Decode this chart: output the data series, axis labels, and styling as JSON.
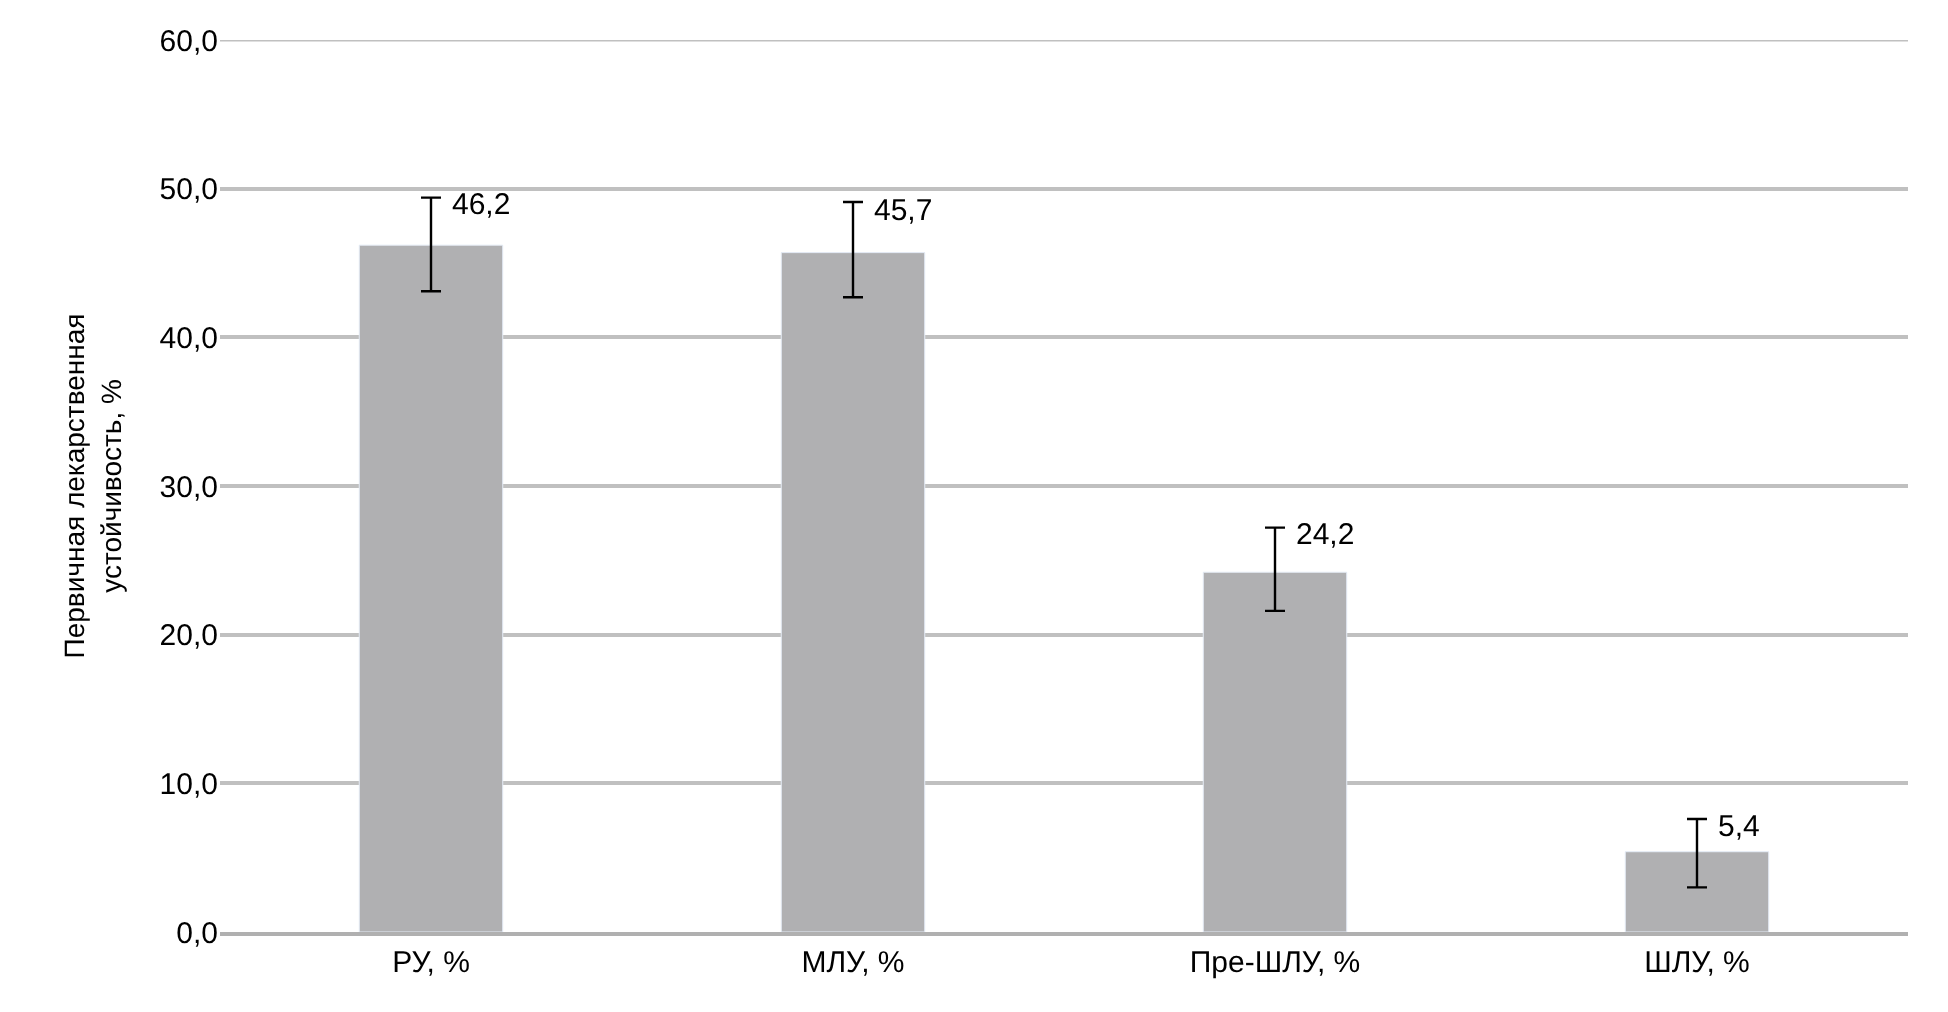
{
  "chart_data": {
    "type": "bar",
    "ylabel": "Первичная лекарственная устойчивость, %",
    "categories": [
      "РУ, %",
      "МЛУ, %",
      "Пре-ШЛУ, %",
      "ШЛУ, %"
    ],
    "values": [
      46.2,
      45.7,
      24.2,
      5.4
    ],
    "value_labels": [
      "46,2",
      "45,7",
      "24,2",
      "5,4"
    ],
    "errors": [
      [
        43.1,
        49.4
      ],
      [
        42.7,
        49.1
      ],
      [
        21.6,
        27.2
      ],
      [
        3.0,
        7.6
      ]
    ],
    "color": "#b0b0b2",
    "ylim": [
      0,
      60
    ],
    "yticks": [
      {
        "value": 0,
        "label": "0,0"
      },
      {
        "value": 10,
        "label": "10,0"
      },
      {
        "value": 20,
        "label": "20,0"
      },
      {
        "value": 30,
        "label": "30,0"
      },
      {
        "value": 40,
        "label": "40,0"
      },
      {
        "value": 50,
        "label": "50,0"
      },
      {
        "value": 60,
        "label": "60,0"
      }
    ],
    "grid": "y",
    "legend": false
  }
}
